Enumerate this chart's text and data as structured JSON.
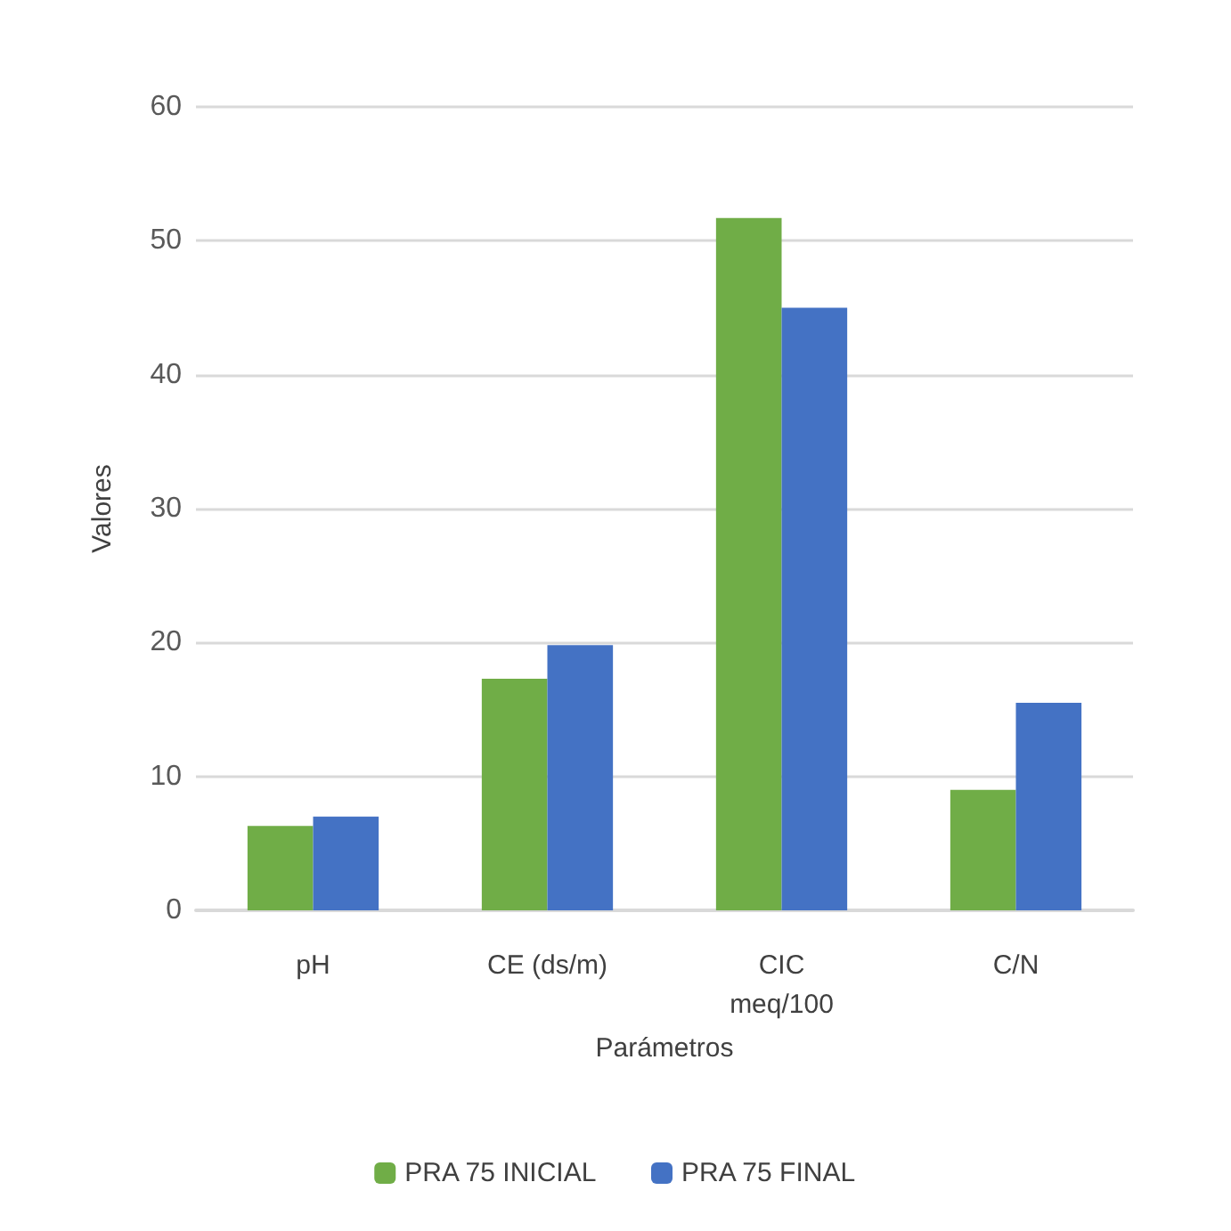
{
  "chart_data": {
    "type": "bar",
    "xlabel": "Parámetros",
    "ylabel": "Valores",
    "categories": [
      "pH",
      "CE (ds/m)",
      "CIC\nmeq/100",
      "C/N"
    ],
    "series": [
      {
        "name": "PRA 75 INICIAL",
        "color": "#70ad47",
        "values": [
          6.3,
          17.3,
          51.7,
          9
        ]
      },
      {
        "name": "PRA 75 FINAL",
        "color": "#4472c4",
        "values": [
          7,
          19.8,
          45,
          15.5
        ]
      }
    ],
    "ylim": [
      0,
      60
    ],
    "yticks": [
      0,
      10,
      20,
      30,
      40,
      50,
      60
    ],
    "grid": "y",
    "legend": "bottom"
  }
}
